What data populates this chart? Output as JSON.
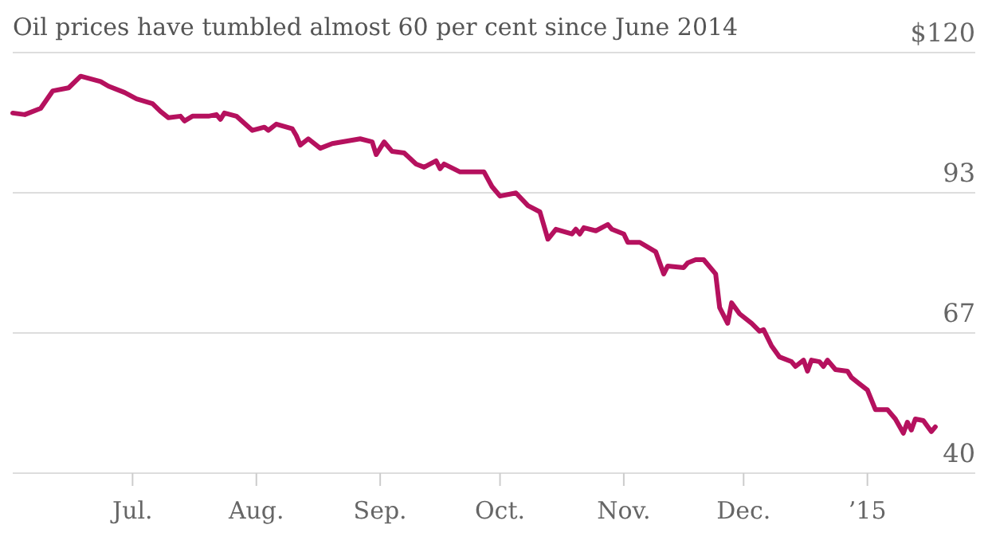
{
  "chart_data": {
    "type": "line",
    "title": "Oil prices have tumbled almost 60 per cent since June 2014",
    "x": [
      "2014-06-01",
      "2014-06-04",
      "2014-06-08",
      "2014-06-11",
      "2014-06-15",
      "2014-06-18",
      "2014-06-23",
      "2014-06-25",
      "2014-06-29",
      "2014-07-02",
      "2014-07-06",
      "2014-07-08",
      "2014-07-10",
      "2014-07-13",
      "2014-07-14",
      "2014-07-16",
      "2014-07-20",
      "2014-07-22",
      "2014-07-23",
      "2014-07-24",
      "2014-07-27",
      "2014-07-31",
      "2014-08-03",
      "2014-08-04",
      "2014-08-06",
      "2014-08-10",
      "2014-08-11",
      "2014-08-12",
      "2014-08-14",
      "2014-08-17",
      "2014-08-20",
      "2014-08-27",
      "2014-08-30",
      "2014-08-31",
      "2014-09-02",
      "2014-09-04",
      "2014-09-07",
      "2014-09-10",
      "2014-09-12",
      "2014-09-15",
      "2014-09-16",
      "2014-09-17",
      "2014-09-21",
      "2014-09-27",
      "2014-09-29",
      "2014-10-01",
      "2014-10-05",
      "2014-10-08",
      "2014-10-11",
      "2014-10-13",
      "2014-10-15",
      "2014-10-19",
      "2014-10-20",
      "2014-10-21",
      "2014-10-22",
      "2014-10-25",
      "2014-10-28",
      "2014-10-29",
      "2014-11-01",
      "2014-11-02",
      "2014-11-05",
      "2014-11-09",
      "2014-11-11",
      "2014-11-12",
      "2014-11-16",
      "2014-11-17",
      "2014-11-19",
      "2014-11-21",
      "2014-11-24",
      "2014-11-25",
      "2014-11-27",
      "2014-11-28",
      "2014-11-30",
      "2014-12-03",
      "2014-12-05",
      "2014-12-06",
      "2014-12-08",
      "2014-12-10",
      "2014-12-13",
      "2014-12-14",
      "2014-12-16",
      "2014-12-17",
      "2014-12-18",
      "2014-12-20",
      "2014-12-21",
      "2014-12-22",
      "2014-12-24",
      "2014-12-27",
      "2014-12-28",
      "2014-12-30",
      "2015-01-01",
      "2015-01-03",
      "2015-01-06",
      "2015-01-08",
      "2015-01-10",
      "2015-01-11",
      "2015-01-12",
      "2015-01-13",
      "2015-01-15",
      "2015-01-17",
      "2015-01-18"
    ],
    "series": [
      {
        "color": "#b5115e",
        "values": [
          108.5,
          108.2,
          109.4,
          112.7,
          113.3,
          115.5,
          114.5,
          113.6,
          112.4,
          111.2,
          110.3,
          108.8,
          107.6,
          107.9,
          107,
          107.9,
          107.9,
          108.2,
          107.3,
          108.5,
          107.9,
          105.2,
          105.8,
          105.2,
          106.4,
          105.5,
          104.2,
          102.4,
          103.6,
          101.8,
          102.7,
          103.6,
          103,
          100.6,
          103,
          101.2,
          100.9,
          98.8,
          98.2,
          99.4,
          97.9,
          98.8,
          97.3,
          97.3,
          94.5,
          92.7,
          93.3,
          90.9,
          89.7,
          84.5,
          86.4,
          85.5,
          86.4,
          85.5,
          86.7,
          86.1,
          87.3,
          86.4,
          85.5,
          83.9,
          83.9,
          82.1,
          77.9,
          79.4,
          79.1,
          80,
          80.6,
          80.6,
          77.9,
          71.5,
          68.5,
          72.4,
          70.3,
          68.5,
          67,
          67.3,
          64.2,
          62.1,
          61.2,
          60.3,
          61.5,
          59.4,
          61.5,
          61.2,
          60.3,
          61.5,
          59.7,
          59.4,
          58.2,
          57,
          55.8,
          52.1,
          52.1,
          50.3,
          47.6,
          49.7,
          48.2,
          50.3,
          50,
          47.9,
          48.8
        ]
      }
    ],
    "xlim": [
      "2014-06-01",
      "2015-01-28"
    ],
    "xticks": [
      {
        "value": "2014-07-01",
        "label": "Jul."
      },
      {
        "value": "2014-08-01",
        "label": "Aug."
      },
      {
        "value": "2014-09-01",
        "label": "Sep."
      },
      {
        "value": "2014-10-01",
        "label": "Oct."
      },
      {
        "value": "2014-11-01",
        "label": "Nov."
      },
      {
        "value": "2014-12-01",
        "label": "Dec."
      },
      {
        "value": "2015-01-01",
        "label": "’15"
      }
    ],
    "ylim": [
      40,
      120
    ],
    "yticks": [
      {
        "value": 40,
        "label": "40"
      },
      {
        "value": 66.67,
        "label": "67"
      },
      {
        "value": 93.33,
        "label": "93"
      },
      {
        "value": 120,
        "label": "$120"
      }
    ],
    "grid": "y",
    "marker": "none",
    "line_style": "solid"
  }
}
